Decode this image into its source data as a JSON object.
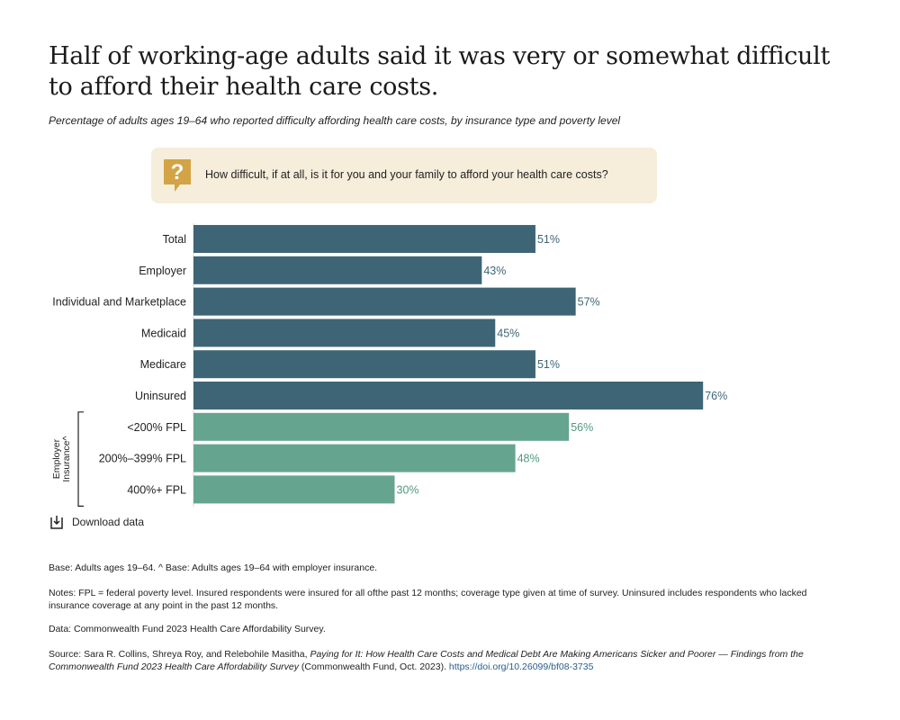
{
  "title": "Half of working-age adults said it was very or somewhat difficult to afford their health care costs.",
  "subtitle": "Percentage of adults ages 19–64 who reported difficulty affording health care costs, by insurance type and poverty level",
  "question": {
    "icon": "question-bubble-icon",
    "text": "How difficult, if at all, is it for you and your family to afford your health care costs?"
  },
  "colors": {
    "insurance_bar": "#3e6576",
    "employer_bar": "#65a590",
    "insurance_label": "#3e6576",
    "employer_label": "#4f9a80",
    "question_bg": "#f6eddb",
    "question_icon": "#d2a445"
  },
  "chart_data": {
    "type": "bar",
    "orientation": "horizontal",
    "categories": [
      "Total",
      "Employer",
      "Individual and Marketplace",
      "Medicaid",
      "Medicare",
      "Uninsured",
      "<200% FPL",
      "200%–399% FPL",
      "400%+ FPL"
    ],
    "values": [
      51,
      43,
      57,
      45,
      51,
      76,
      56,
      48,
      30
    ],
    "value_labels": [
      "51%",
      "43%",
      "57%",
      "45%",
      "51%",
      "76%",
      "56%",
      "48%",
      "30%"
    ],
    "groups": [
      "insurance",
      "insurance",
      "insurance",
      "insurance",
      "insurance",
      "insurance",
      "employer",
      "employer",
      "employer"
    ],
    "bracket_label": "Employer Insurance^",
    "xlim": [
      0,
      100
    ],
    "grid": false
  },
  "download": {
    "icon": "download-icon",
    "label": "Download data"
  },
  "footnotes": {
    "base": "Base: Adults ages 19–64. ^ Base: Adults ages 19–64 with employer insurance.",
    "notes": "Notes: FPL = federal poverty level. Insured respondents were insured for all ofthe past 12 months; coverage type given at time of survey. Uninsured includes respondents who lacked insurance coverage at any point in the past 12 months.",
    "data": "Data: Commonwealth Fund 2023 Health Care Affordability Survey.",
    "source_prefix": "Source: Sara R. Collins, Shreya Roy, and Relebohile Masitha, ",
    "source_title": "Paying for It: How Health Care Costs and Medical Debt Are Making Americans Sicker and Poorer — Findings from the Commonwealth Fund 2023 Health Care Affordability Survey",
    "source_suffix": " (Commonwealth Fund, Oct. 2023). ",
    "source_link": "https://doi.org/10.26099/bf08-3735"
  }
}
